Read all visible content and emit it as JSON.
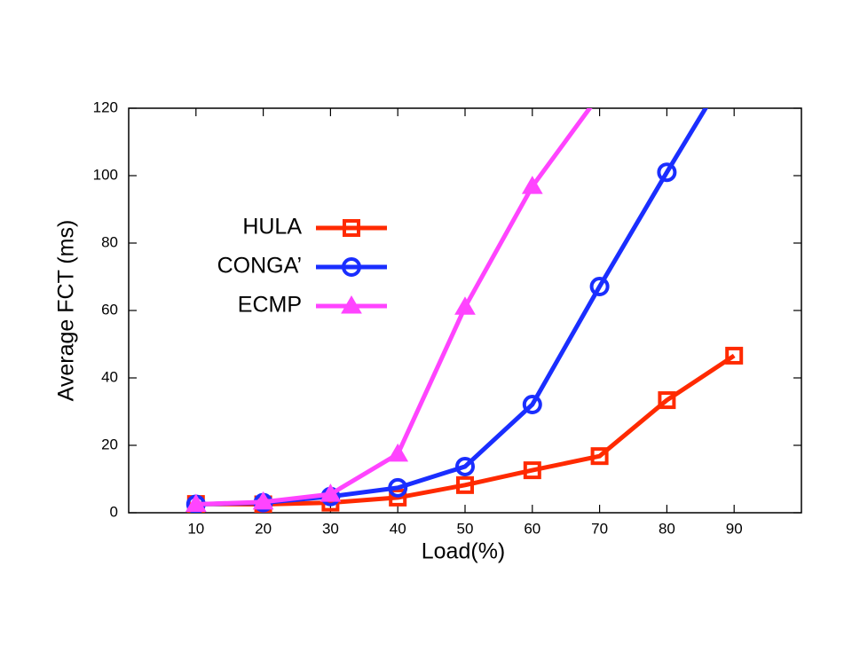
{
  "chart_data": {
    "type": "line",
    "xlabel": "Load(%)",
    "ylabel": "Average FCT (ms)",
    "x": [
      10,
      20,
      30,
      40,
      50,
      60,
      70,
      80,
      90
    ],
    "xlim": [
      0,
      100
    ],
    "xticks": [
      10,
      20,
      30,
      40,
      50,
      60,
      70,
      80,
      90
    ],
    "ylim": [
      0,
      120
    ],
    "yticks": [
      0,
      20,
      40,
      60,
      80,
      100,
      120
    ],
    "series": [
      {
        "name": "HULA",
        "color": "#ff2a00",
        "marker": "square",
        "values": [
          2.6,
          2.5,
          3,
          4.5,
          8.2,
          12.6,
          16.8,
          33.4,
          46.6
        ]
      },
      {
        "name": "CONGA’",
        "color": "#1a2eff",
        "marker": "circle",
        "values": [
          2.5,
          3,
          4.8,
          7.4,
          13.7,
          32.1,
          67.1,
          101,
          134
        ]
      },
      {
        "name": "ECMP",
        "color": "#ff44ff",
        "marker": "triangle",
        "values": [
          2.5,
          3.2,
          5.5,
          17.4,
          61,
          96.8,
          124,
          null,
          null
        ]
      }
    ]
  }
}
